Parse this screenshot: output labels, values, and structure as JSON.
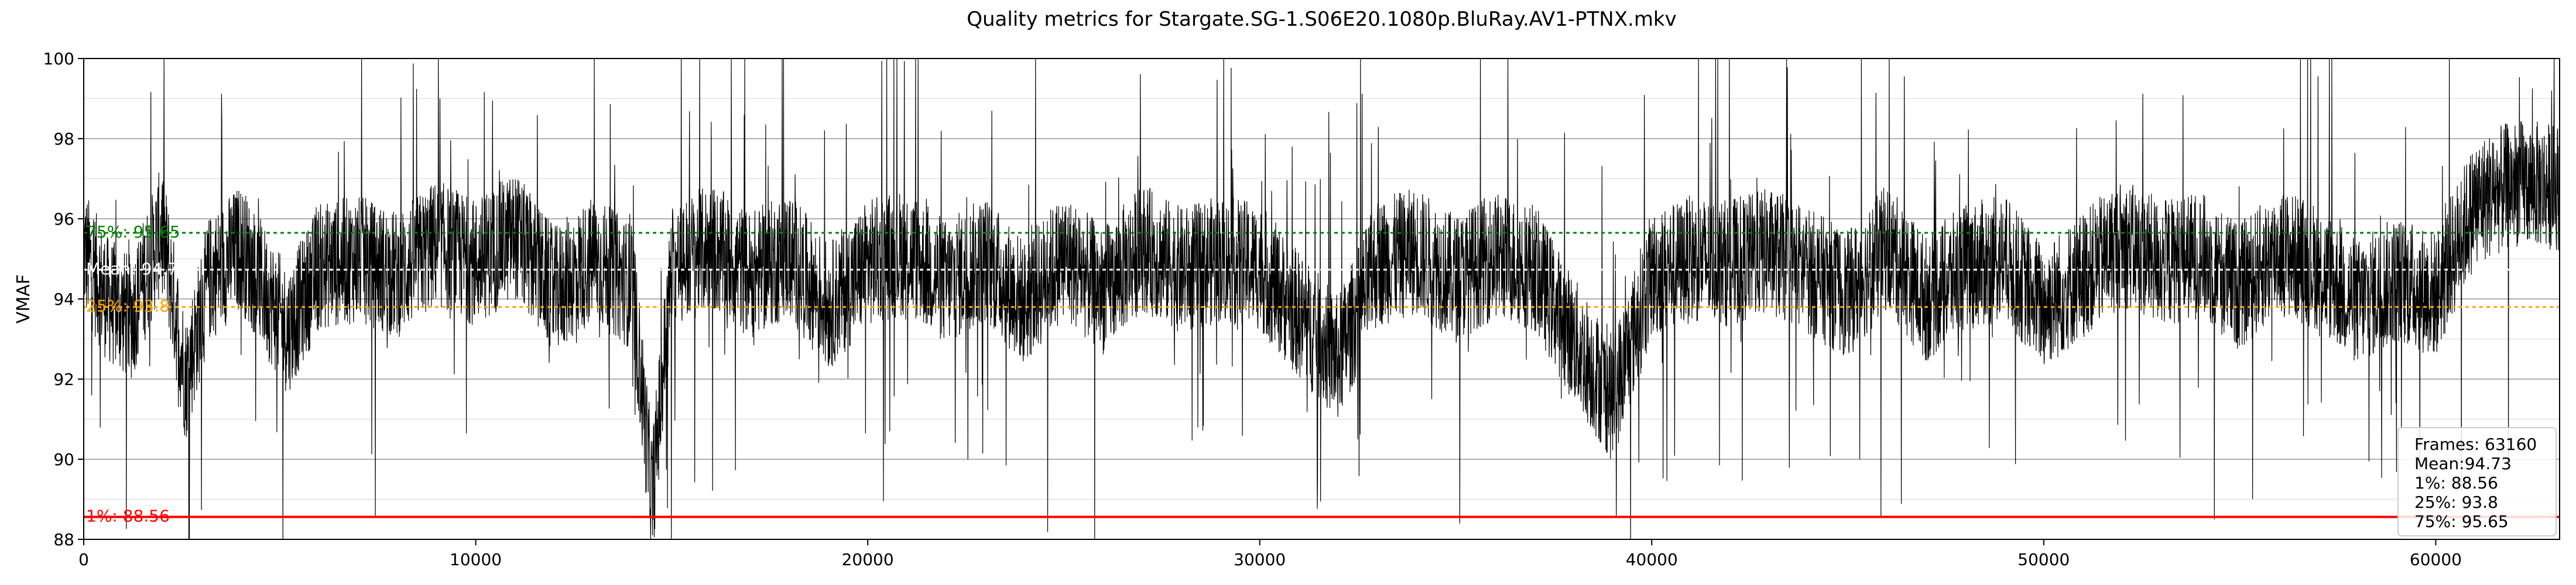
{
  "chart_data": {
    "type": "line",
    "title": "Quality metrics for Stargate.SG-1.S06E20.1080p.BluRay.AV1-PTNX.mkv",
    "xlabel": "",
    "ylabel": "VMAF",
    "xlim": [
      0,
      63160
    ],
    "ylim": [
      88,
      100
    ],
    "xticks": [
      0,
      10000,
      20000,
      30000,
      40000,
      50000,
      60000
    ],
    "yticks": [
      88,
      90,
      92,
      94,
      96,
      98,
      100
    ],
    "grid": true,
    "series": [
      {
        "color": "#000000",
        "frames": 63160,
        "description_points": [
          [
            0,
            95.2
          ],
          [
            600,
            94.0
          ],
          [
            1200,
            93.5
          ],
          [
            2000,
            95.8
          ],
          [
            2600,
            92.0
          ],
          [
            3200,
            94.5
          ],
          [
            4000,
            95.3
          ],
          [
            5200,
            93.2
          ],
          [
            6000,
            94.8
          ],
          [
            7000,
            95.0
          ],
          [
            8000,
            94.6
          ],
          [
            9000,
            95.4
          ],
          [
            10000,
            94.9
          ],
          [
            11000,
            95.6
          ],
          [
            12000,
            94.2
          ],
          [
            13000,
            95.0
          ],
          [
            14000,
            94.3
          ],
          [
            14500,
            89.0
          ],
          [
            15000,
            94.8
          ],
          [
            16000,
            95.3
          ],
          [
            17000,
            94.6
          ],
          [
            18000,
            95.1
          ],
          [
            19000,
            93.8
          ],
          [
            20000,
            94.9
          ],
          [
            21000,
            95.2
          ],
          [
            22000,
            94.4
          ],
          [
            23000,
            95.0
          ],
          [
            24000,
            93.9
          ],
          [
            25000,
            95.1
          ],
          [
            26000,
            94.2
          ],
          [
            27000,
            95.3
          ],
          [
            28000,
            94.7
          ],
          [
            29000,
            95.0
          ],
          [
            30000,
            94.8
          ],
          [
            31000,
            93.6
          ],
          [
            32000,
            92.5
          ],
          [
            33000,
            94.9
          ],
          [
            34000,
            95.2
          ],
          [
            35000,
            94.5
          ],
          [
            36000,
            95.1
          ],
          [
            37000,
            94.8
          ],
          [
            38000,
            93.0
          ],
          [
            39000,
            91.5
          ],
          [
            40000,
            94.6
          ],
          [
            41000,
            95.0
          ],
          [
            42000,
            94.9
          ],
          [
            43000,
            95.2
          ],
          [
            44000,
            94.7
          ],
          [
            45000,
            94.1
          ],
          [
            46000,
            95.3
          ],
          [
            47000,
            94.0
          ],
          [
            48000,
            94.8
          ],
          [
            49000,
            95.0
          ],
          [
            50000,
            93.8
          ],
          [
            51000,
            94.6
          ],
          [
            52000,
            95.4
          ],
          [
            53000,
            94.9
          ],
          [
            54000,
            95.1
          ],
          [
            55000,
            94.3
          ],
          [
            56000,
            95.2
          ],
          [
            57000,
            94.8
          ],
          [
            58000,
            93.9
          ],
          [
            59000,
            94.5
          ],
          [
            60000,
            94.1
          ],
          [
            61000,
            96.4
          ],
          [
            62000,
            96.9
          ],
          [
            63160,
            96.8
          ]
        ]
      }
    ],
    "reference_lines": [
      {
        "name": "1%",
        "label": "1%: 88.56",
        "value": 88.56,
        "color": "#ff0000",
        "style": "solid"
      },
      {
        "name": "25%",
        "label": "25%: 93.8",
        "value": 93.8,
        "color": "#ffa500",
        "style": "dotted"
      },
      {
        "name": "Mean",
        "label": "Mean: 94.73",
        "value": 94.73,
        "color": "#ffffff",
        "style": "dotted"
      },
      {
        "name": "75%",
        "label": "75%: 95.65",
        "value": 95.65,
        "color": "#008000",
        "style": "dotted"
      }
    ],
    "stats_box": {
      "placement": "bottom-right",
      "lines": [
        "Frames: 63160",
        "Mean:94.73",
        "1%: 88.56",
        "25%: 93.8",
        "75%: 95.65"
      ]
    }
  }
}
